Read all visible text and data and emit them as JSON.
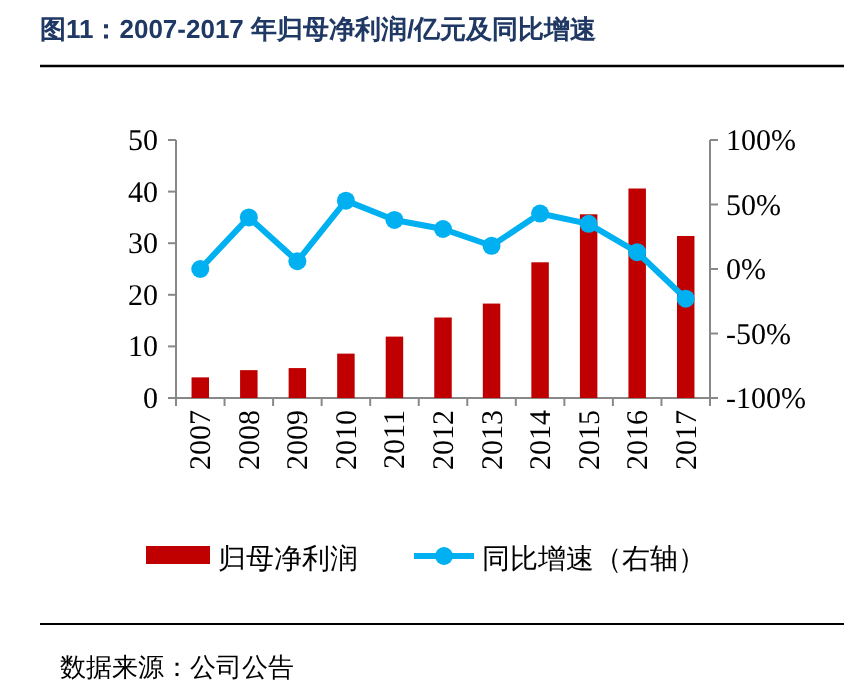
{
  "chart_data": {
    "type": "bar",
    "title": "图11：2007-2017 年归母净利润/亿元及同比增速",
    "categories": [
      "2007",
      "2008",
      "2009",
      "2010",
      "2011",
      "2012",
      "2013",
      "2014",
      "2015",
      "2016",
      "2017"
    ],
    "series": [
      {
        "name": "归母净利润",
        "color": "#c00000",
        "values": [
          4.0,
          5.4,
          5.8,
          8.6,
          11.9,
          15.6,
          18.3,
          26.3,
          35.6,
          40.6,
          31.4
        ]
      },
      {
        "name": "同比增速（右轴）",
        "type": "line",
        "axis": "y2",
        "color": "#00b0f0",
        "values": [
          0,
          40,
          6,
          53,
          38,
          31,
          18,
          43,
          35,
          13,
          -23
        ]
      }
    ],
    "ylim": [
      0,
      50
    ],
    "yticks": [
      0,
      10,
      20,
      30,
      40,
      50
    ],
    "y2lim": [
      -100,
      100
    ],
    "y2ticks": [
      {
        "value": -100,
        "label": "-100%"
      },
      {
        "value": -50,
        "label": "-50%"
      },
      {
        "value": 0,
        "label": "0%"
      },
      {
        "value": 50,
        "label": "50%"
      },
      {
        "value": 100,
        "label": "100%"
      }
    ],
    "marker": "circle",
    "legend": "bottom",
    "annotations": [
      "数据来源：公司公告"
    ]
  }
}
